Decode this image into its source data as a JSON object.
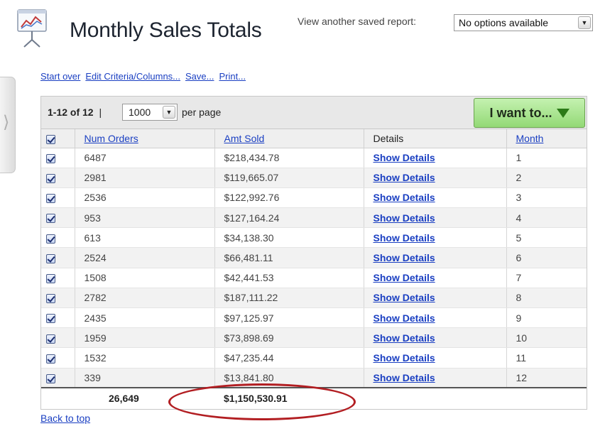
{
  "header": {
    "title": "Monthly Sales Totals",
    "saved_report_label": "View another saved report:",
    "saved_report_value": "No options available"
  },
  "actions": [
    {
      "label": "Start over"
    },
    {
      "label": "Edit Criteria/Columns..."
    },
    {
      "label": "Save..."
    },
    {
      "label": "Print..."
    }
  ],
  "toolbar": {
    "range": "1-12 of 12",
    "separator": "|",
    "per_page_value": "1000",
    "per_page_label": "per page",
    "i_want_label": "I want to..."
  },
  "table": {
    "columns": [
      "Num Orders",
      "Amt Sold",
      "Details",
      "Month"
    ],
    "rows": [
      {
        "num_orders": "6487",
        "amt_sold": "$218,434.78",
        "details": "Show Details",
        "month": "1"
      },
      {
        "num_orders": "2981",
        "amt_sold": "$119,665.07",
        "details": "Show Details",
        "month": "2"
      },
      {
        "num_orders": "2536",
        "amt_sold": "$122,992.76",
        "details": "Show Details",
        "month": "3"
      },
      {
        "num_orders": "953",
        "amt_sold": "$127,164.24",
        "details": "Show Details",
        "month": "4"
      },
      {
        "num_orders": "613",
        "amt_sold": "$34,138.30",
        "details": "Show Details",
        "month": "5"
      },
      {
        "num_orders": "2524",
        "amt_sold": "$66,481.11",
        "details": "Show Details",
        "month": "6"
      },
      {
        "num_orders": "1508",
        "amt_sold": "$42,441.53",
        "details": "Show Details",
        "month": "7"
      },
      {
        "num_orders": "2782",
        "amt_sold": "$187,111.22",
        "details": "Show Details",
        "month": "8"
      },
      {
        "num_orders": "2435",
        "amt_sold": "$97,125.97",
        "details": "Show Details",
        "month": "9"
      },
      {
        "num_orders": "1959",
        "amt_sold": "$73,898.69",
        "details": "Show Details",
        "month": "10"
      },
      {
        "num_orders": "1532",
        "amt_sold": "$47,235.44",
        "details": "Show Details",
        "month": "11"
      },
      {
        "num_orders": "339",
        "amt_sold": "$13,841.80",
        "details": "Show Details",
        "month": "12"
      }
    ],
    "totals": {
      "num_orders": "26,649",
      "amt_sold": "$1,150,530.91"
    }
  },
  "footer": {
    "back_to_top": "Back to top"
  },
  "colors": {
    "link": "#1a3fc2",
    "button_green": "#93d976",
    "highlight_red": "#b21e22"
  },
  "icons": [
    "report-chart-icon",
    "chevron-right-icon",
    "dropdown-arrow-icon",
    "checkbox-checked-icon"
  ]
}
